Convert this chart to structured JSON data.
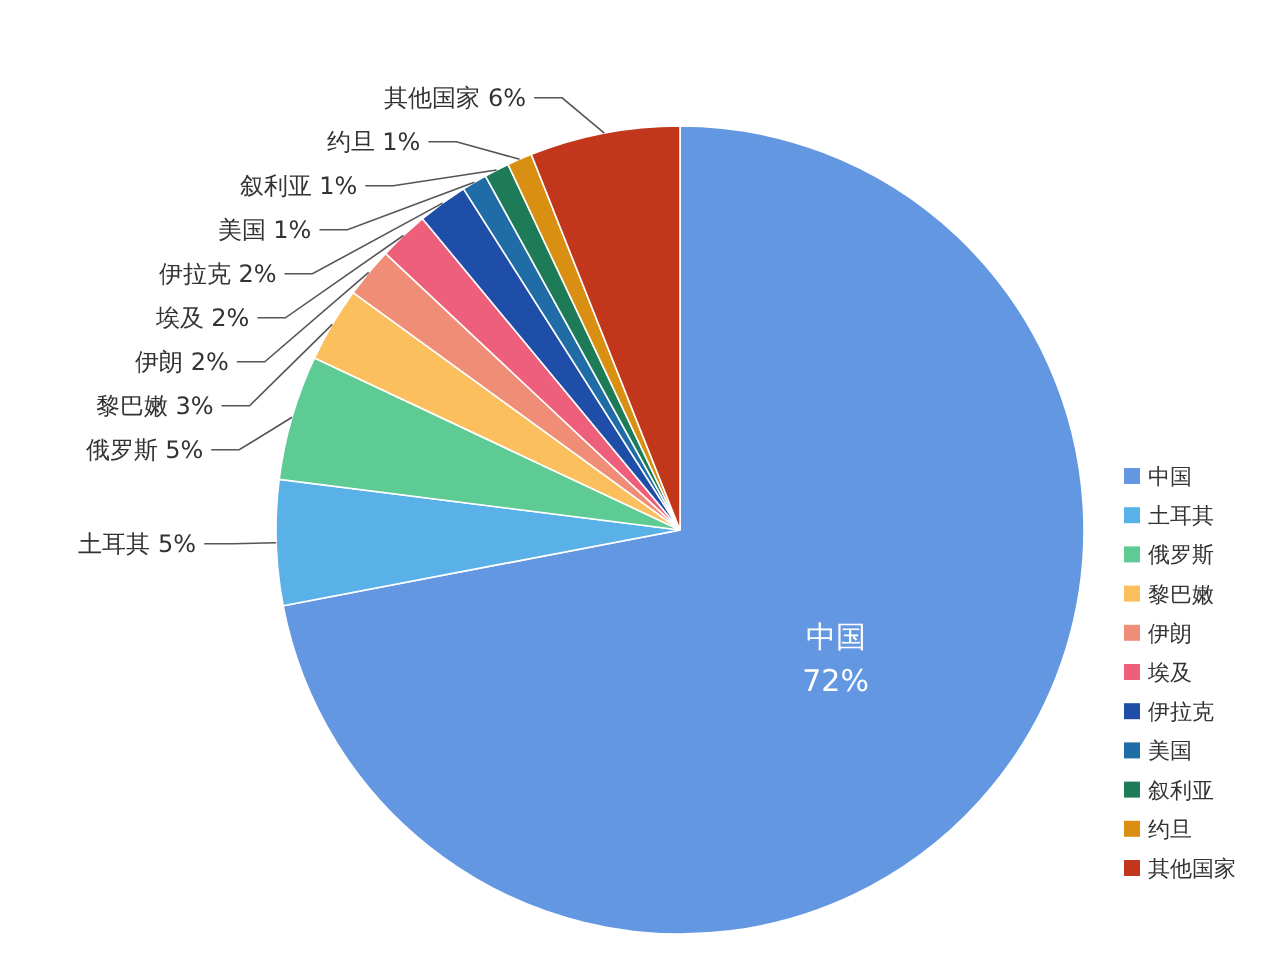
{
  "chart_data": {
    "type": "pie",
    "categories": [
      "中国",
      "土耳其",
      "俄罗斯",
      "黎巴嫩",
      "伊朗",
      "埃及",
      "伊拉克",
      "美国",
      "叙利亚",
      "约旦",
      "其他国家"
    ],
    "values": [
      72,
      5,
      5,
      3,
      2,
      2,
      2,
      1,
      1,
      1,
      6
    ],
    "value_labels": [
      "72%",
      "5%",
      "5%",
      "3%",
      "2%",
      "2%",
      "2%",
      "1%",
      "1%",
      "1%",
      "6%"
    ],
    "colors": [
      "#6497e1",
      "#5ab1e8",
      "#5ecb95",
      "#fbbf5e",
      "#f08d76",
      "#ee5f7c",
      "#1f4ea8",
      "#1f6ca6",
      "#1e7b58",
      "#d98f12",
      "#c2361c"
    ],
    "legend": "right"
  }
}
